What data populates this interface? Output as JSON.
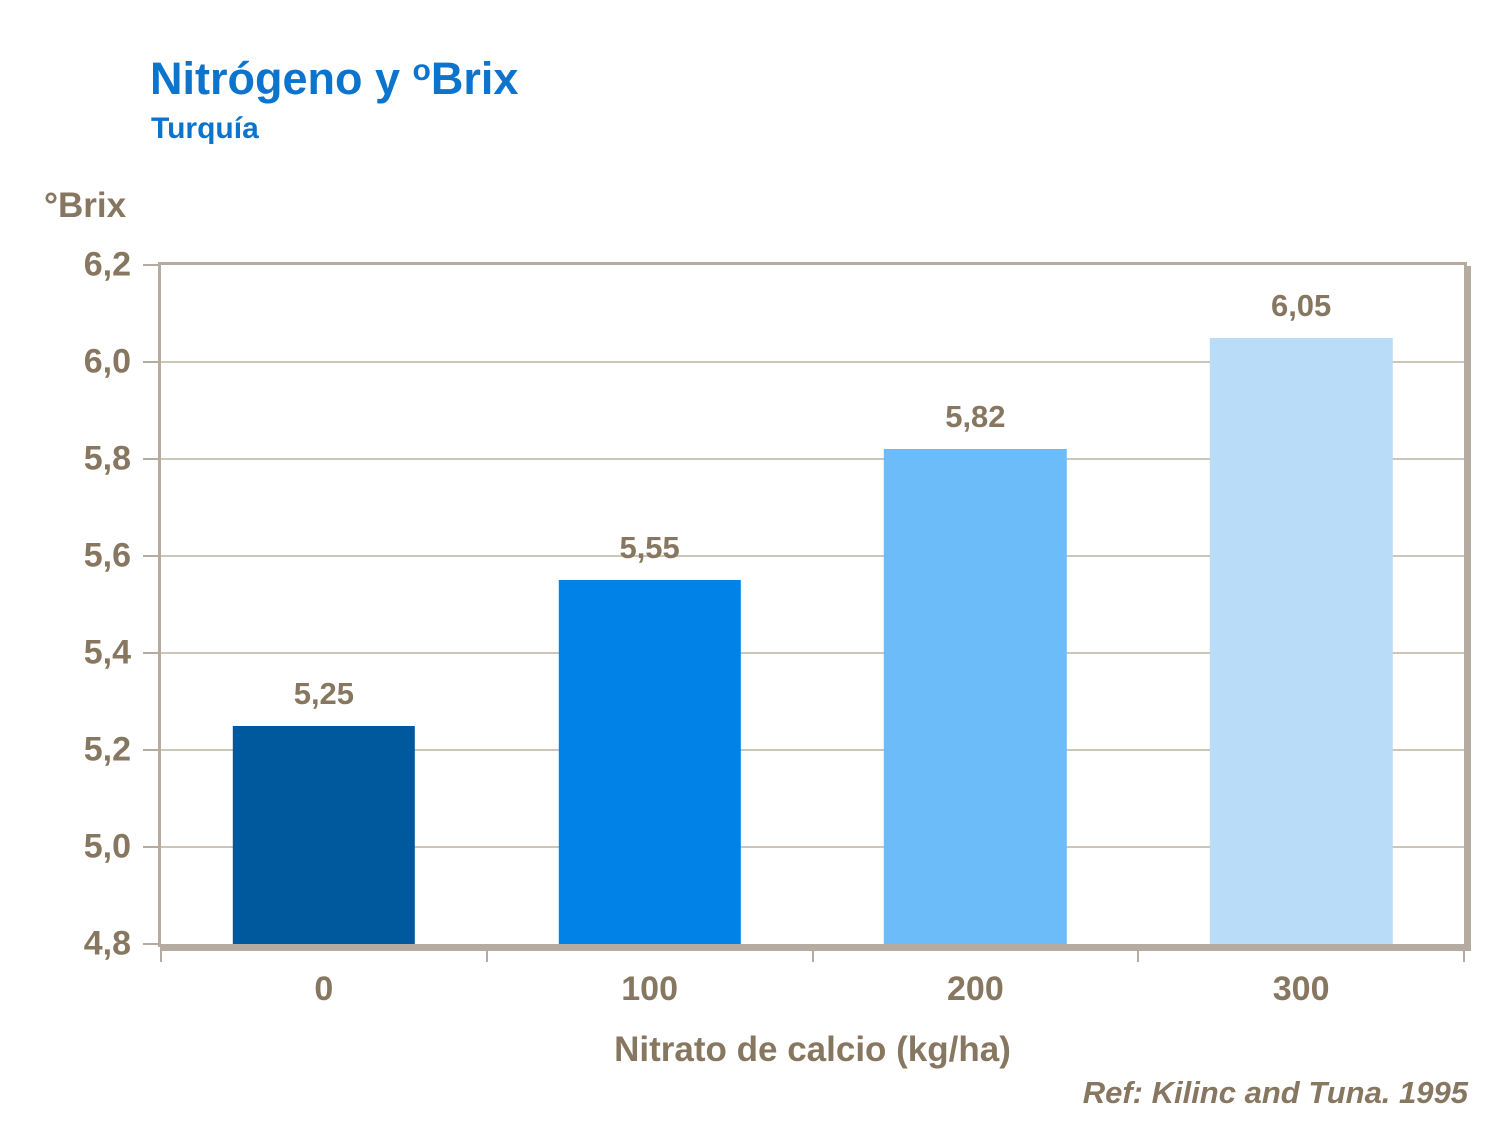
{
  "header": {
    "title_main": "Nitrógeno y ",
    "title_sup": "o",
    "title_tail": "Brix",
    "subtitle": "Turquía"
  },
  "chart_data": {
    "type": "bar",
    "title": "Nitrógeno y ºBrix",
    "subtitle": "Turquía",
    "categories": [
      "0",
      "100",
      "200",
      "300"
    ],
    "values": [
      5.25,
      5.55,
      5.82,
      6.05
    ],
    "value_labels": [
      "5,25",
      "5,55",
      "5,82",
      "6,05"
    ],
    "xlabel": "Nitrato de calcio (kg/ha)",
    "ylabel": "°Brix",
    "ylim": [
      4.8,
      6.2
    ],
    "ytick_step": 0.2,
    "ytick_labels": [
      "4,8",
      "5,0",
      "5,2",
      "5,4",
      "5,6",
      "5,8",
      "6,0",
      "6,2"
    ],
    "grid": true,
    "legend": "none",
    "bar_colors": [
      "#00599c",
      "#0082e6",
      "#6cbcfa",
      "#b9ddf8"
    ]
  },
  "footer": {
    "ref": "Ref: Kilinc and Tuna. 1995"
  },
  "colors": {
    "title_blue": "#0d74cd",
    "text_brown": "#877760",
    "axis_tan": "#b5aba0",
    "gridline": "#cdc4ba"
  }
}
